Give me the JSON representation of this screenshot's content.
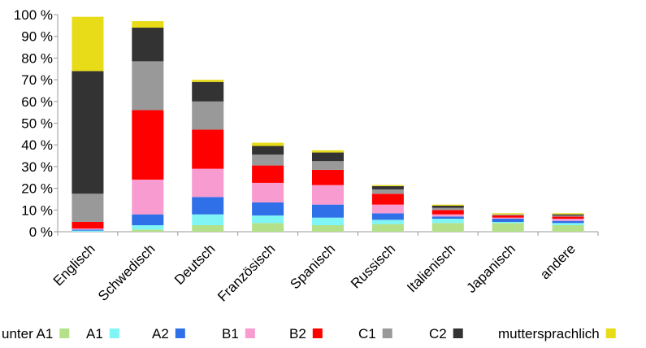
{
  "chart_data": {
    "type": "bar",
    "stacked": true,
    "categories": [
      "Englisch",
      "Schwedisch",
      "Deutsch",
      "Französisch",
      "Spanisch",
      "Russisch",
      "Italienisch",
      "Japanisch",
      "andere"
    ],
    "ylim": [
      0,
      100
    ],
    "yticks": [
      "0 %",
      "10 %",
      "20 %",
      "30 %",
      "40 %",
      "50 %",
      "60 %",
      "70 %",
      "80 %",
      "90 %",
      "100 %"
    ],
    "grid": false,
    "legend_position": "bottom",
    "series": [
      {
        "name": "unter A1",
        "color": "#b3e088",
        "values": [
          0,
          1,
          3,
          4,
          3,
          3.5,
          4,
          4,
          3
        ]
      },
      {
        "name": "A1",
        "color": "#7ff5f5",
        "values": [
          0.5,
          2,
          5,
          3.5,
          3.5,
          2,
          2,
          0.5,
          1
        ]
      },
      {
        "name": "A2",
        "color": "#2f6fe8",
        "values": [
          0.5,
          5,
          8,
          6,
          6,
          3,
          1,
          1.5,
          1
        ]
      },
      {
        "name": "B1",
        "color": "#f79bd0",
        "values": [
          0.5,
          16,
          13,
          9,
          9,
          4,
          1,
          0.5,
          1
        ]
      },
      {
        "name": "B2",
        "color": "#ff0000",
        "values": [
          3,
          32,
          18,
          8,
          7,
          5,
          2,
          1,
          1
        ]
      },
      {
        "name": "C1",
        "color": "#999999",
        "values": [
          13,
          22.5,
          13,
          5,
          4,
          2,
          1,
          0.5,
          0.5
        ]
      },
      {
        "name": "C2",
        "color": "#333333",
        "values": [
          56.5,
          15.5,
          9,
          4,
          4,
          1.5,
          1,
          0,
          0.5
        ]
      },
      {
        "name": "muttersprachlich",
        "color": "#e8db17",
        "values": [
          25,
          3,
          1,
          1.5,
          1,
          0.5,
          0.5,
          0.5,
          0.5
        ]
      }
    ]
  }
}
